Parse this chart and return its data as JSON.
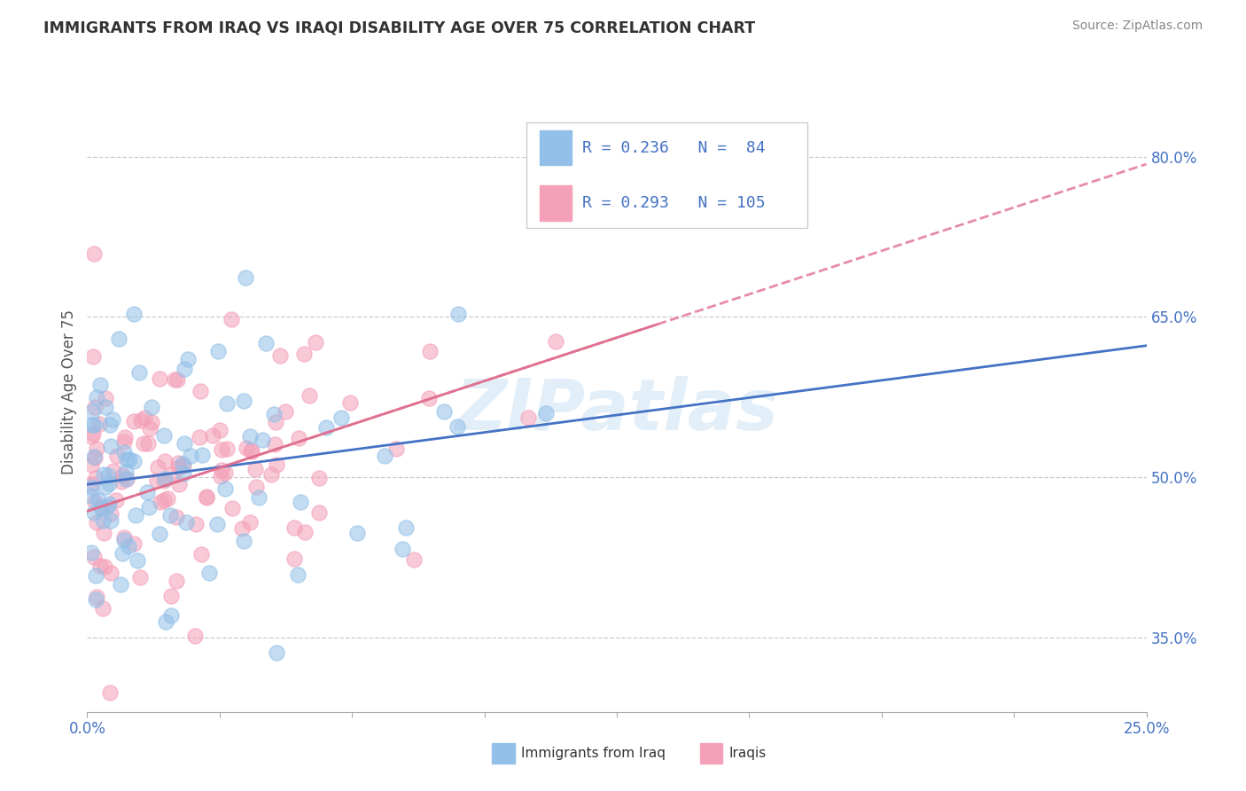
{
  "title": "IMMIGRANTS FROM IRAQ VS IRAQI DISABILITY AGE OVER 75 CORRELATION CHART",
  "source": "Source: ZipAtlas.com",
  "ylabel_label": "Disability Age Over 75",
  "xlim": [
    0.0,
    0.25
  ],
  "ylim": [
    0.28,
    0.88
  ],
  "ytick_vals": [
    0.35,
    0.5,
    0.65,
    0.8
  ],
  "ytick_labels": [
    "35.0%",
    "50.0%",
    "65.0%",
    "80.0%"
  ],
  "xtick_vals": [
    0.0,
    0.03125,
    0.0625,
    0.09375,
    0.125,
    0.15625,
    0.1875,
    0.21875,
    0.25
  ],
  "xtick_edge_labels": [
    "0.0%",
    "25.0%"
  ],
  "color_blue": "#92C0E8",
  "color_pink": "#F4A0B8",
  "color_blue_line": "#4472C4",
  "color_pink_line": "#E07090",
  "watermark": "ZIPatlas",
  "R1": 0.236,
  "N1": 84,
  "R2": 0.293,
  "N2": 105,
  "blue_intercept": 0.493,
  "blue_slope": 0.57,
  "pink_intercept": 0.485,
  "pink_slope": 1.05
}
